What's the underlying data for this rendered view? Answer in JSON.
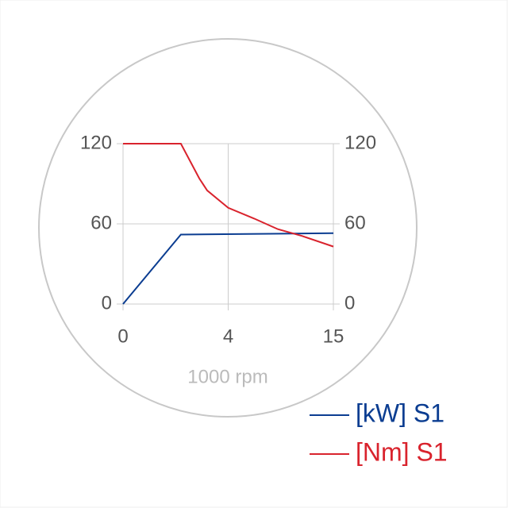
{
  "chart_data": {
    "type": "line",
    "x_label": "1000 rpm",
    "xticks": [
      0,
      4,
      15
    ],
    "ylim": [
      0,
      120
    ],
    "yticks": [
      0,
      60,
      120
    ],
    "y2lim": [
      0,
      120
    ],
    "y2ticks": [
      0,
      60,
      120
    ],
    "grid": true,
    "legend": "bottom-right",
    "series": [
      {
        "name": "[kW] S1",
        "color": "#0b3d91",
        "x": [
          0,
          2.2,
          15
        ],
        "values": [
          0,
          52,
          53
        ]
      },
      {
        "name": "[Nm] S1",
        "color": "#d9232d",
        "axis": "y2",
        "x": [
          0,
          2.2,
          2.9,
          3.2,
          4,
          6.7,
          9.2,
          11.7,
          15
        ],
        "values": [
          120,
          120,
          94,
          85,
          72,
          64,
          56,
          51,
          43
        ]
      }
    ]
  }
}
